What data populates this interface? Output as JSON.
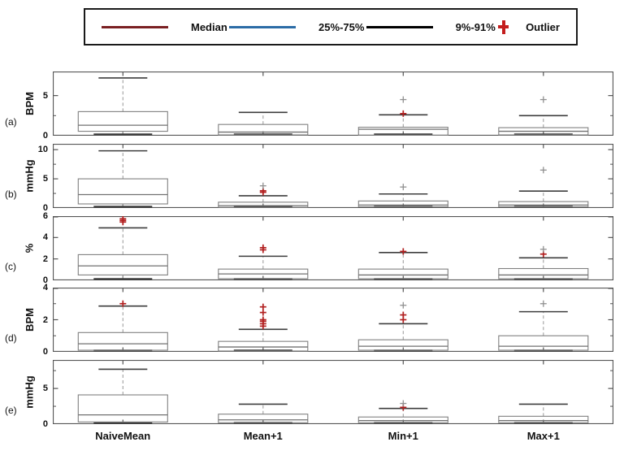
{
  "legend": {
    "items": [
      {
        "label": "Median",
        "color": "#7a2022",
        "type": "line"
      },
      {
        "label": "25%-75%",
        "color": "#2b6ca6",
        "type": "line"
      },
      {
        "label": "9%-91%",
        "color": "#000000",
        "type": "line"
      },
      {
        "label": "Outlier",
        "color": "#c41e1e",
        "type": "plus"
      }
    ]
  },
  "colors": {
    "axis": "#555555",
    "box": "#808080",
    "median": "#707070",
    "cap": "#3d3d3d",
    "whisker": "#a0a0a0",
    "outlier": "#b22020",
    "outlier_far": "#909090"
  },
  "chart_data": {
    "type": "box",
    "categories": [
      "NaiveMean",
      "Mean+1",
      "Min+1",
      "Max+1"
    ],
    "legend_position": "top",
    "panels": [
      {
        "id": "a",
        "label": "(a)",
        "ylabel": "BPM",
        "ylim": [
          0,
          8
        ],
        "yticks": [
          0,
          5
        ],
        "yminor": [
          2.5
        ],
        "boxes": [
          {
            "category": "NaiveMean",
            "whislo": 0.05,
            "q1": 0.55,
            "med": 1.3,
            "q3": 3.0,
            "whishi": 7.2,
            "outliers": [],
            "outliers_far": []
          },
          {
            "category": "Mean+1",
            "whislo": 0.03,
            "q1": 0.1,
            "med": 0.45,
            "q3": 1.4,
            "whishi": 2.9,
            "outliers": [],
            "outliers_far": []
          },
          {
            "category": "Min+1",
            "whislo": 0.03,
            "q1": 0.07,
            "med": 0.8,
            "q3": 1.05,
            "whishi": 2.6,
            "outliers": [
              2.75
            ],
            "outliers_far": [
              4.5
            ]
          },
          {
            "category": "Max+1",
            "whislo": 0.05,
            "q1": 0.1,
            "med": 0.55,
            "q3": 1.0,
            "whishi": 2.5,
            "outliers": [],
            "outliers_far": [
              4.5
            ]
          }
        ]
      },
      {
        "id": "b",
        "label": "(b)",
        "ylabel": "mmHg",
        "ylim": [
          0,
          11
        ],
        "yticks": [
          0,
          5,
          10
        ],
        "yminor": [
          2.5,
          7.5
        ],
        "boxes": [
          {
            "category": "NaiveMean",
            "whislo": 0.05,
            "q1": 0.7,
            "med": 2.3,
            "q3": 5.0,
            "whishi": 9.8,
            "outliers": [],
            "outliers_far": []
          },
          {
            "category": "Mean+1",
            "whislo": 0.03,
            "q1": 0.12,
            "med": 0.4,
            "q3": 1.0,
            "whishi": 2.1,
            "outliers": [
              2.7,
              2.95
            ],
            "outliers_far": [
              3.8
            ]
          },
          {
            "category": "Min+1",
            "whislo": 0.03,
            "q1": 0.2,
            "med": 0.5,
            "q3": 1.2,
            "whishi": 2.4,
            "outliers": [],
            "outliers_far": [
              3.6
            ]
          },
          {
            "category": "Max+1",
            "whislo": 0.03,
            "q1": 0.2,
            "med": 0.5,
            "q3": 1.1,
            "whishi": 2.9,
            "outliers": [],
            "outliers_far": [
              6.5
            ]
          }
        ]
      },
      {
        "id": "c",
        "label": "(c)",
        "ylabel": "%",
        "ylim": [
          0,
          6
        ],
        "yticks": [
          0,
          2,
          4,
          6
        ],
        "yminor": [],
        "boxes": [
          {
            "category": "NaiveMean",
            "whislo": 0.05,
            "q1": 0.5,
            "med": 1.35,
            "q3": 2.4,
            "whishi": 4.9,
            "outliers": [
              5.45,
              5.6,
              5.75
            ],
            "outliers_far": []
          },
          {
            "category": "Mean+1",
            "whislo": 0.03,
            "q1": 0.15,
            "med": 0.6,
            "q3": 1.05,
            "whishi": 2.25,
            "outliers": [
              2.85,
              3.05
            ],
            "outliers_far": []
          },
          {
            "category": "Min+1",
            "whislo": 0.03,
            "q1": 0.15,
            "med": 0.5,
            "q3": 1.05,
            "whishi": 2.6,
            "outliers": [
              2.7
            ],
            "outliers_far": []
          },
          {
            "category": "Max+1",
            "whislo": 0.03,
            "q1": 0.15,
            "med": 0.5,
            "q3": 1.1,
            "whishi": 2.1,
            "outliers": [
              2.45
            ],
            "outliers_far": [
              2.9
            ]
          }
        ]
      },
      {
        "id": "d",
        "label": "(d)",
        "ylabel": "BPM",
        "ylim": [
          0,
          4
        ],
        "yticks": [
          0,
          2,
          4
        ],
        "yminor": [
          1,
          3
        ],
        "boxes": [
          {
            "category": "NaiveMean",
            "whislo": 0.02,
            "q1": 0.1,
            "med": 0.5,
            "q3": 1.2,
            "whishi": 2.85,
            "outliers": [
              3.0
            ],
            "outliers_far": []
          },
          {
            "category": "Mean+1",
            "whislo": 0.02,
            "q1": 0.05,
            "med": 0.3,
            "q3": 0.65,
            "whishi": 1.4,
            "outliers": [
              1.6,
              1.75,
              1.9,
              2.0,
              2.45,
              2.8
            ],
            "outliers_far": []
          },
          {
            "category": "Min+1",
            "whislo": 0.02,
            "q1": 0.1,
            "med": 0.35,
            "q3": 0.75,
            "whishi": 1.75,
            "outliers": [
              2.0,
              2.3
            ],
            "outliers_far": [
              2.9
            ]
          },
          {
            "category": "Max+1",
            "whislo": 0.02,
            "q1": 0.1,
            "med": 0.35,
            "q3": 1.0,
            "whishi": 2.5,
            "outliers": [],
            "outliers_far": [
              3.0
            ]
          }
        ]
      },
      {
        "id": "e",
        "label": "(e)",
        "ylabel": "mmHg",
        "ylim": [
          0,
          9
        ],
        "yticks": [
          0,
          5
        ],
        "yminor": [
          2.5,
          7.5
        ],
        "boxes": [
          {
            "category": "NaiveMean",
            "whislo": 0.1,
            "q1": 0.3,
            "med": 1.3,
            "q3": 4.1,
            "whishi": 7.7,
            "outliers": [],
            "outliers_far": []
          },
          {
            "category": "Mean+1",
            "whislo": 0.1,
            "q1": 0.2,
            "med": 0.6,
            "q3": 1.4,
            "whishi": 2.8,
            "outliers": [],
            "outliers_far": []
          },
          {
            "category": "Min+1",
            "whislo": 0.1,
            "q1": 0.2,
            "med": 0.5,
            "q3": 1.0,
            "whishi": 2.2,
            "outliers": [
              2.35
            ],
            "outliers_far": [
              2.9
            ]
          },
          {
            "category": "Max+1",
            "whislo": 0.1,
            "q1": 0.2,
            "med": 0.5,
            "q3": 1.1,
            "whishi": 2.8,
            "outliers": [],
            "outliers_far": []
          }
        ]
      }
    ]
  }
}
